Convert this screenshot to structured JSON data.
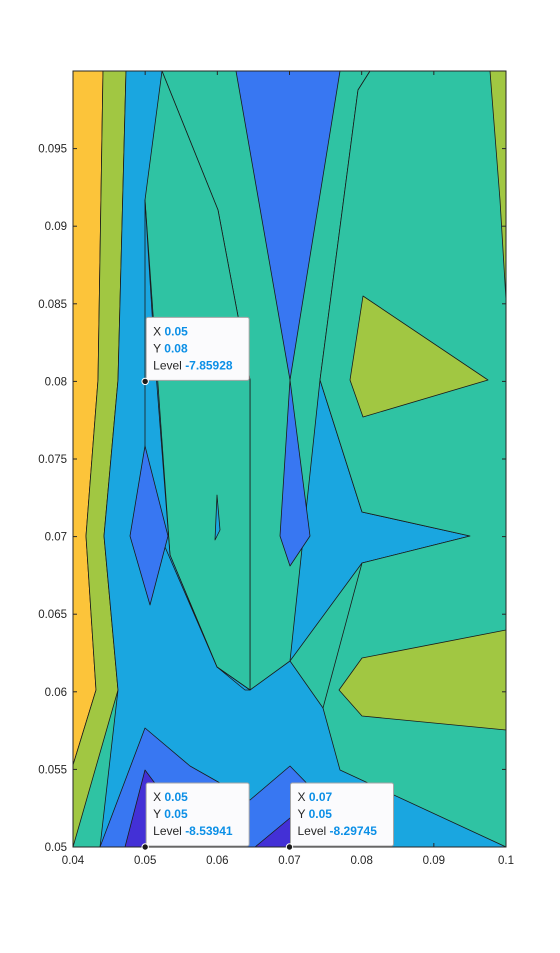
{
  "chart_data": {
    "type": "contour",
    "title": "",
    "xlabel": "",
    "ylabel": "",
    "xlim": [
      0.04,
      0.1
    ],
    "ylim": [
      0.05,
      0.1
    ],
    "grid": false,
    "x_ticks": [
      "0.04",
      "0.05",
      "0.06",
      "0.07",
      "0.08",
      "0.09",
      "0.1"
    ],
    "x_tick_values": [
      0.04,
      0.05,
      0.06,
      0.07,
      0.08,
      0.09,
      0.1
    ],
    "y_ticks": [
      "0.05",
      "0.055",
      "0.06",
      "0.065",
      "0.07",
      "0.075",
      "0.08",
      "0.085",
      "0.09",
      "0.095"
    ],
    "y_tick_values": [
      0.05,
      0.055,
      0.06,
      0.065,
      0.07,
      0.075,
      0.08,
      0.085,
      0.09,
      0.095
    ],
    "level_colors": {
      "lowest": "#4330d6",
      "low": "#3877f2",
      "mid_low": "#1aa6e0",
      "mid": "#2fc3a3",
      "mid_high": "#a1c742",
      "high": "#fcc43a"
    },
    "datatips": [
      {
        "x_label": "X",
        "x": "0.05",
        "y_label": "Y",
        "y": "0.08",
        "level_label": "Level",
        "level": "-7.85928"
      },
      {
        "x_label": "X",
        "x": "0.05",
        "y_label": "Y",
        "y": "0.05",
        "level_label": "Level",
        "level": "-8.53941"
      },
      {
        "x_label": "X",
        "x": "0.07",
        "y_label": "Y",
        "y": "0.05",
        "level_label": "Level",
        "level": "-8.29745"
      }
    ]
  }
}
